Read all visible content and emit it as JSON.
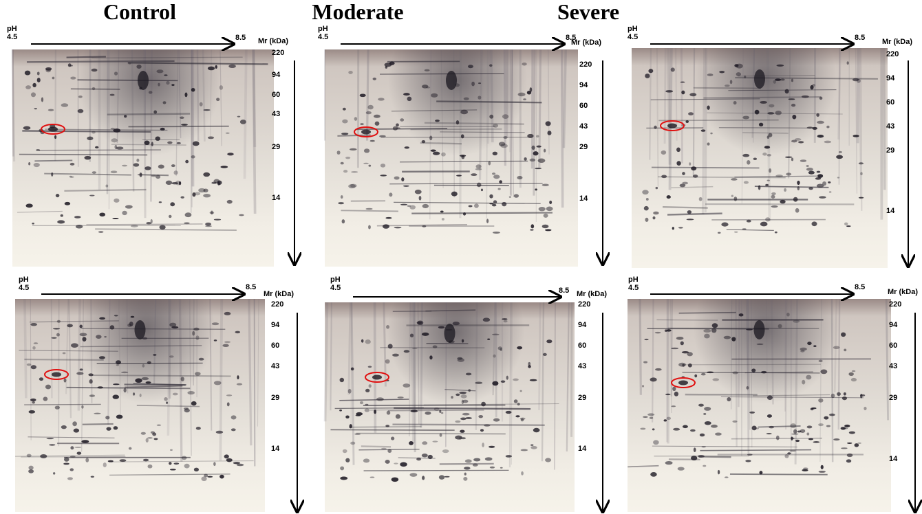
{
  "columns": [
    "Control",
    "Moderate",
    "Severe"
  ],
  "panels": [
    {
      "ph_label": "pH",
      "ph_low": "4.5",
      "ph_high": "8.5",
      "mr_label": "Mr (kDa)",
      "markers": [
        "220",
        "94",
        "60",
        "43",
        "29",
        "14"
      ]
    },
    {
      "ph_label": "pH",
      "ph_low": "4.5",
      "ph_high": "8.5",
      "mr_label": "Mr (kDa)",
      "markers": [
        "220",
        "94",
        "60",
        "43",
        "29",
        "14"
      ]
    },
    {
      "ph_label": "pH",
      "ph_low": "4.5",
      "ph_high": "8.5",
      "mr_label": "Mr (kDa)",
      "markers": [
        "220",
        "94",
        "60",
        "43",
        "29",
        "14"
      ]
    },
    {
      "ph_label": "pH",
      "ph_low": "4.5",
      "ph_high": "8.5",
      "mr_label": "Mr (kDa)",
      "markers": [
        "220",
        "94",
        "60",
        "43",
        "29",
        "14"
      ]
    },
    {
      "ph_label": "pH",
      "ph_low": "4.5",
      "ph_high": "8.5",
      "mr_label": "Mr (kDa)",
      "markers": [
        "220",
        "94",
        "60",
        "43",
        "29",
        "14"
      ]
    },
    {
      "ph_label": "pH",
      "ph_low": "4.5",
      "ph_high": "8.5",
      "mr_label": "Mr (kDa)",
      "markers": [
        "220",
        "94",
        "60",
        "43",
        "29",
        "14"
      ]
    }
  ]
}
